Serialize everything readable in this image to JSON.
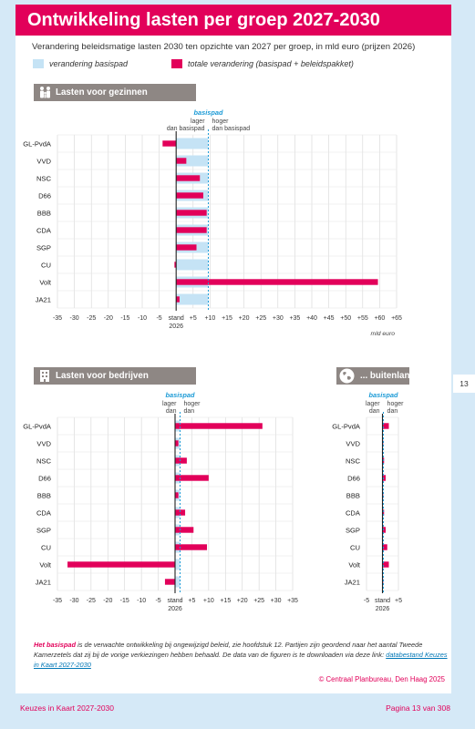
{
  "header": {
    "title": "Ontwikkeling lasten per groep 2027-2030",
    "subtitle": "Verandering beleidsmatige lasten 2030 ten opzichte van 2027 per groep, in mld euro (prijzen 2026)"
  },
  "legend": {
    "basispad": "verandering basispad",
    "totaal": "totale verandering (basispad + beleidspakket)"
  },
  "colors": {
    "brand": "#e2005a",
    "basispad": "#c5e3f5",
    "panel_header": "#8e8784",
    "dashed_line": "#1a9ad6"
  },
  "common": {
    "basispad_label": "basispad",
    "lager": "lager",
    "hoger": "hoger",
    "dan_basispad": "dan basispad",
    "dan": "dan",
    "stand": "stand",
    "year": "2026",
    "unit": "mld euro"
  },
  "chart_data": [
    {
      "type": "bar",
      "orientation": "horizontal",
      "title": "Lasten voor gezinnen",
      "icon": "family-icon",
      "categories": [
        "GL-PvdA",
        "VVD",
        "NSC",
        "D66",
        "BBB",
        "CDA",
        "SGP",
        "CU",
        "Volt",
        "JA21"
      ],
      "xlim": [
        -35,
        65
      ],
      "ticks": [
        -35,
        -30,
        -25,
        -20,
        -15,
        -10,
        -5,
        0,
        5,
        10,
        15,
        20,
        25,
        30,
        35,
        40,
        45,
        50,
        55,
        60,
        65
      ],
      "tick_labels": [
        "-35",
        "-30",
        "-25",
        "-20",
        "-15",
        "-10",
        "-5",
        "",
        "+5",
        "+10",
        "+15",
        "+20",
        "+25",
        "+30",
        "+35",
        "+40",
        "+45",
        "+50",
        "+55",
        "+60",
        "+65"
      ],
      "basispad_value": 9.5,
      "series": [
        {
          "name": "verandering basispad",
          "values": [
            9.5,
            9.5,
            9.5,
            9.5,
            9.5,
            9.5,
            9.5,
            9.5,
            9.5,
            9.5
          ]
        },
        {
          "name": "totale verandering (basispad + beleidspakket)",
          "values": [
            -4,
            3,
            7,
            8,
            9,
            9,
            6,
            -0.5,
            59.5,
            1
          ]
        }
      ],
      "xlabel": "mld euro",
      "grid": true
    },
    {
      "type": "bar",
      "orientation": "horizontal",
      "title": "Lasten voor bedrijven",
      "icon": "building-icon",
      "categories": [
        "GL-PvdA",
        "VVD",
        "NSC",
        "D66",
        "BBB",
        "CDA",
        "SGP",
        "CU",
        "Volt",
        "JA21"
      ],
      "xlim": [
        -35,
        35
      ],
      "ticks": [
        -35,
        -30,
        -25,
        -20,
        -15,
        -10,
        -5,
        0,
        5,
        10,
        15,
        20,
        25,
        30,
        35
      ],
      "tick_labels": [
        "-35",
        "-30",
        "-25",
        "-20",
        "-15",
        "-10",
        "-5",
        "",
        "+5",
        "+10",
        "+15",
        "+20",
        "+25",
        "+30",
        "+35"
      ],
      "basispad_value": 1.5,
      "series": [
        {
          "name": "verandering basispad",
          "values": [
            1.5,
            1.5,
            1.5,
            1.5,
            1.5,
            1.5,
            1.5,
            1.5,
            1.5,
            1.5
          ]
        },
        {
          "name": "totale verandering (basispad + beleidspakket)",
          "values": [
            26,
            1,
            3.5,
            10,
            1,
            3,
            5.5,
            9.5,
            -32,
            -3
          ]
        }
      ],
      "xlabel": "mld euro",
      "grid": true
    },
    {
      "type": "bar",
      "orientation": "horizontal",
      "title": "... buitenland",
      "icon": "globe-icon",
      "categories": [
        "GL-PvdA",
        "VVD",
        "NSC",
        "D66",
        "BBB",
        "CDA",
        "SGP",
        "CU",
        "Volt",
        "JA21"
      ],
      "xlim": [
        -5,
        5
      ],
      "ticks": [
        -5,
        0,
        5
      ],
      "tick_labels": [
        "-5",
        "",
        "+5"
      ],
      "basispad_value": 0.3,
      "series": [
        {
          "name": "verandering basispad",
          "values": [
            0.3,
            0.3,
            0.3,
            0.3,
            0.3,
            0.3,
            0.3,
            0.3,
            0.3,
            0.3
          ]
        },
        {
          "name": "totale verandering (basispad + beleidspakket)",
          "values": [
            2,
            0,
            0.5,
            1,
            0,
            0.5,
            1,
            1.5,
            2,
            0
          ]
        }
      ],
      "xlabel": "mld euro",
      "grid": true
    }
  ],
  "footnote": {
    "lead": "Het basispad",
    "body": " is de verwachte ontwikkeling bij ongewijzigd beleid, zie hoofdstuk 12. Partijen zijn geordend naar het aantal Tweede Kamerzetels dat zij bij de vorige verkiezingen hebben behaald. De data van de figuren is te downloaden via deze link: ",
    "link": "databestand Keuzes in Kaart 2027-2030"
  },
  "copyright": "© Centraal Planbureau, Den Haag 2025",
  "footer": {
    "left": "Keuzes in Kaart 2027-2030",
    "right": "Pagina 13 van 308"
  },
  "page_tab": "13"
}
